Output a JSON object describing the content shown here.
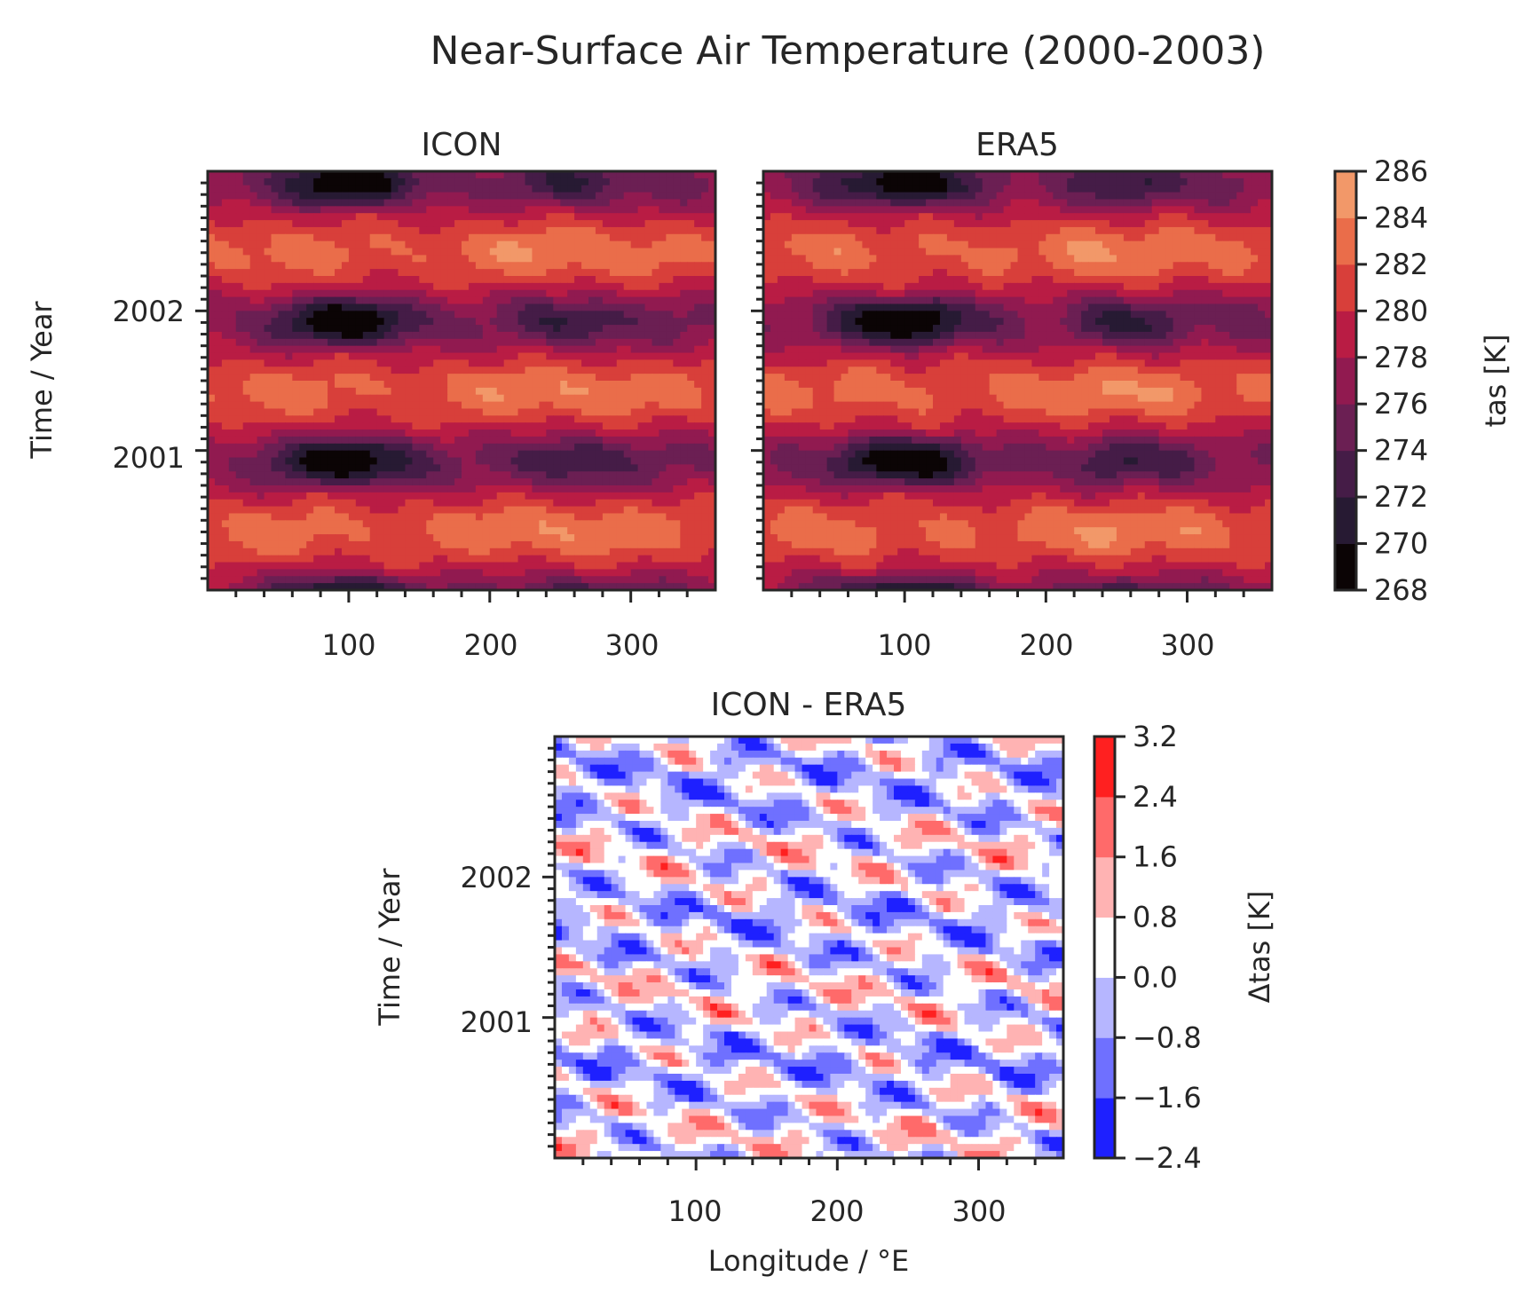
{
  "figure": {
    "title": "Near-Surface Air Temperature (2000-2003)"
  },
  "colors": {
    "tas_levels": [
      "#0b0405",
      "#271a33",
      "#451c47",
      "#6b1f53",
      "#911a50",
      "#b91c44",
      "#d83f3a",
      "#ea6d4a",
      "#f29869",
      "#f6bd9b",
      "#fbe2d3"
    ],
    "diff_levels": [
      "#1e20ff",
      "#6f70ff",
      "#b6b6ff",
      "#ffffff",
      "#ffb3b3",
      "#ff6a6a",
      "#ff2020"
    ]
  },
  "chart_data": [
    {
      "type": "heatmap",
      "title": "ICON",
      "xlabel": "",
      "ylabel": "Time / Year",
      "xlim": [
        0,
        360
      ],
      "ylim": [
        2000.0,
        2003.0
      ],
      "xticks": [
        "100",
        "200",
        "300"
      ],
      "yticks": [
        "2001",
        "2002"
      ],
      "shared_colorbar": "tas"
    },
    {
      "type": "heatmap",
      "title": "ERA5",
      "xlabel": "",
      "ylabel": "",
      "xlim": [
        0,
        360
      ],
      "ylim": [
        2000.0,
        2003.0
      ],
      "xticks": [
        "100",
        "200",
        "300"
      ],
      "yticks": [],
      "shared_colorbar": "tas"
    },
    {
      "type": "heatmap",
      "title": "ICON - ERA5",
      "xlabel": "Longitude / °E",
      "ylabel": "Time / Year",
      "xlim": [
        0,
        360
      ],
      "ylim": [
        2000.0,
        2003.0
      ],
      "xticks": [
        "100",
        "200",
        "300"
      ],
      "yticks": [
        "2001",
        "2002"
      ],
      "colorbar": "dtas"
    }
  ],
  "colorbars": {
    "tas": {
      "label": "tas [K]",
      "levels": [
        "268",
        "270",
        "272",
        "274",
        "276",
        "278",
        "280",
        "282",
        "284",
        "286"
      ]
    },
    "dtas": {
      "label": "Δtas [K]",
      "levels": [
        "−2.4",
        "−1.6",
        "−0.8",
        "0.0",
        "0.8",
        "1.6",
        "2.4",
        "3.2"
      ]
    }
  }
}
